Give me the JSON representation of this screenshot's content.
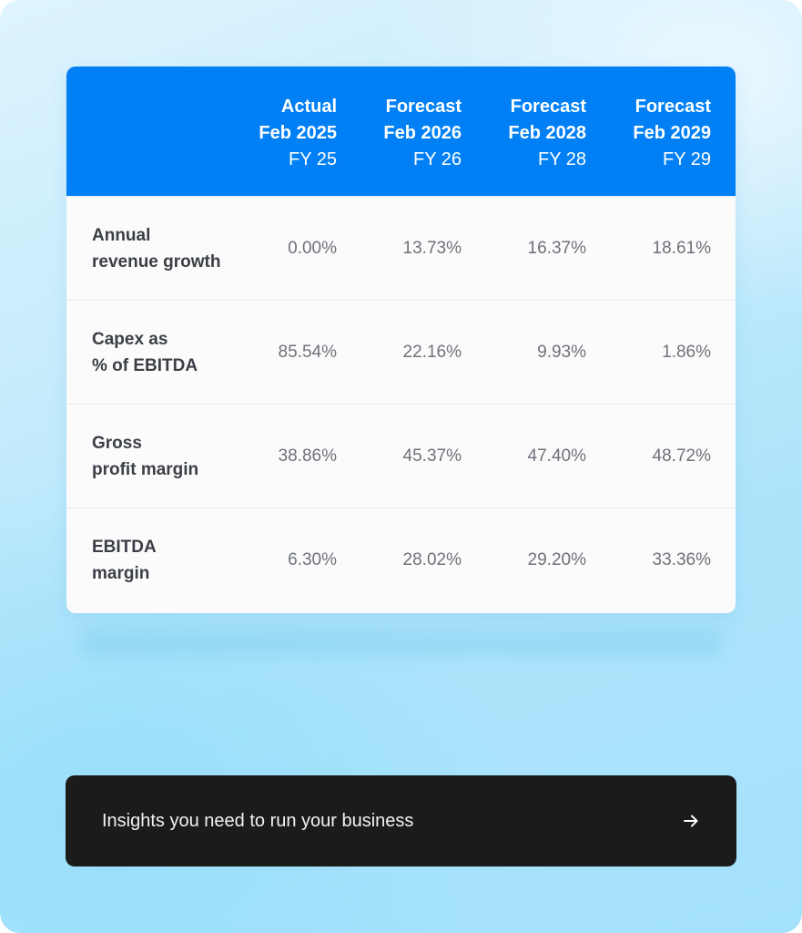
{
  "table": {
    "columns": [
      {
        "type": "Actual",
        "period": "Feb 2025",
        "fy": "FY 25"
      },
      {
        "type": "Forecast",
        "period": "Feb 2026",
        "fy": "FY 26"
      },
      {
        "type": "Forecast",
        "period": "Feb 2028",
        "fy": "FY 28"
      },
      {
        "type": "Forecast",
        "period": "Feb 2029",
        "fy": "FY 29"
      }
    ],
    "rows": [
      {
        "label_line1": "Annual",
        "label_line2": "revenue growth",
        "values": [
          "0.00%",
          "13.73%",
          "16.37%",
          "18.61%"
        ]
      },
      {
        "label_line1": "Capex as",
        "label_line2": "% of EBITDA",
        "values": [
          "85.54%",
          "22.16%",
          "9.93%",
          "1.86%"
        ]
      },
      {
        "label_line1": "Gross",
        "label_line2": "profit margin",
        "values": [
          "38.86%",
          "45.37%",
          "47.40%",
          "48.72%"
        ]
      },
      {
        "label_line1": "EBITDA",
        "label_line2": "margin",
        "values": [
          "6.30%",
          "28.02%",
          "29.20%",
          "33.36%"
        ]
      }
    ]
  },
  "cta": {
    "label": "Insights you need to run your business",
    "icon": "arrow-right-icon"
  },
  "colors": {
    "header_bg": "#0180f5",
    "cta_bg": "#1b1b1c"
  }
}
